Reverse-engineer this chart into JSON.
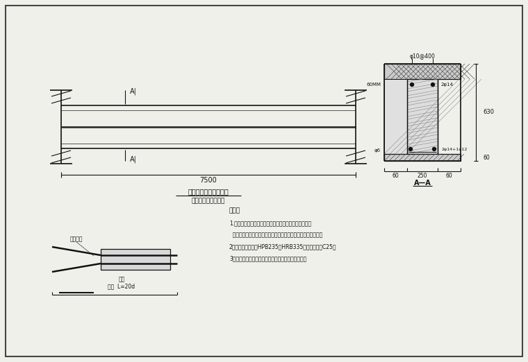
{
  "bg_color": "#f0f0eb",
  "border_color": "#222222",
  "line_color": "#111111",
  "gray_color": "#666666",
  "title1": "某梁增大截面加固示意",
  "title2": "（植筋喷射混凝土）",
  "dim_7500": "7500",
  "notes_title": "注意：",
  "note1": "1.在上部梁具多章先生先化，清洗好净，面层处理干净，",
  "note2": "  再在处理完毕后进行混凝土填入盖面处，假小处理大干净完毕。",
  "note3": "2、材料：锚筋采用HPB235或HRB335，混凝土标号C25。",
  "note4": "3、施工时应各按合规范施工过程质量验收标准执行。",
  "cross_top_label": "φ10@400",
  "cross_2phi14_top": "2φ14",
  "cross_2phi14_bot": "2φ14+1φ12",
  "cross_phi6": "φ6",
  "cross_60mm": "60MM",
  "cross_630": "630",
  "cross_250": "250",
  "cross_60a": "60",
  "cross_60b": "60",
  "cross_60c": "60",
  "section_label": "A—A",
  "A_upper": "A|",
  "A_lower": "A|",
  "detail_renzao": "人工凿岄",
  "detail_zhujin": "樿筋",
  "detail_maogujin": "锻固  L=20d"
}
